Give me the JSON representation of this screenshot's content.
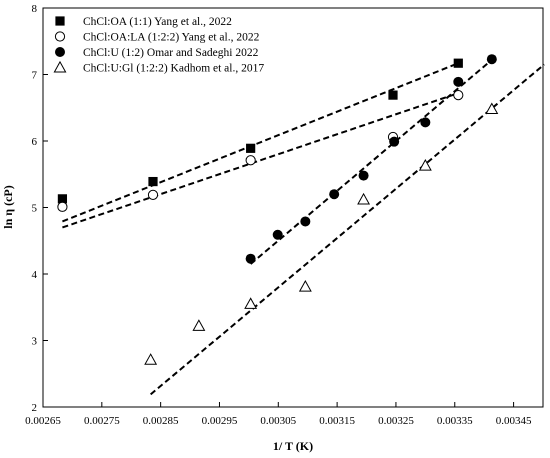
{
  "chart_data": {
    "type": "scatter",
    "title": "",
    "xlabel": "1/ T (K)",
    "ylabel": "ln η (cP)",
    "xlim": [
      0.00265,
      0.0035
    ],
    "ylim": [
      2,
      8
    ],
    "xticks": [
      "0.00265",
      "0.00275",
      "0.00285",
      "0.00295",
      "0.00305",
      "0.00315",
      "0.00325",
      "0.00335",
      "0.00345"
    ],
    "yticks": [
      "2",
      "3",
      "4",
      "5",
      "6",
      "7",
      "8"
    ],
    "grid": false,
    "legend_position": "top-left",
    "series": [
      {
        "name": "ChCl:OA (1:1) Yang et al., 2022",
        "marker": "filled-square",
        "color": "#000000",
        "points": [
          [
            0.002683,
            5.13
          ],
          [
            0.002837,
            5.39
          ],
          [
            0.003003,
            5.89
          ],
          [
            0.003245,
            6.69
          ],
          [
            0.003356,
            7.17
          ]
        ],
        "trendline": [
          [
            0.002683,
            4.79
          ],
          [
            0.003356,
            7.17
          ]
        ]
      },
      {
        "name": "ChCl:OA:LA (1:2:2) Yang et al., 2022",
        "marker": "open-circle",
        "color": "#000000",
        "points": [
          [
            0.002683,
            5.01
          ],
          [
            0.002837,
            5.19
          ],
          [
            0.003003,
            5.71
          ],
          [
            0.003245,
            6.06
          ],
          [
            0.003356,
            6.69
          ]
        ],
        "trendline": [
          [
            0.002683,
            4.7
          ],
          [
            0.003356,
            6.72
          ]
        ]
      },
      {
        "name": "ChCl:U (1:2) Omar and Sadeghi 2022",
        "marker": "filled-circle",
        "color": "#000000",
        "points": [
          [
            0.003003,
            4.23
          ],
          [
            0.003049,
            4.59
          ],
          [
            0.003096,
            4.79
          ],
          [
            0.003145,
            5.2
          ],
          [
            0.003195,
            5.48
          ],
          [
            0.003247,
            5.99
          ],
          [
            0.0033,
            6.28
          ],
          [
            0.003356,
            6.89
          ],
          [
            0.003413,
            7.23
          ]
        ],
        "trendline": [
          [
            0.003003,
            4.15
          ],
          [
            0.003413,
            7.22
          ]
        ]
      },
      {
        "name": "ChCl:U:Gl (1:2:2) Kadhom et al., 2017",
        "marker": "open-triangle",
        "color": "#000000",
        "points": [
          [
            0.002833,
            2.71
          ],
          [
            0.002915,
            3.22
          ],
          [
            0.003003,
            3.55
          ],
          [
            0.003096,
            3.81
          ],
          [
            0.003195,
            5.12
          ],
          [
            0.0033,
            5.63
          ],
          [
            0.003413,
            6.48
          ]
        ],
        "trendline": [
          [
            0.002833,
            2.19
          ],
          [
            0.003502,
            7.15
          ]
        ]
      }
    ]
  }
}
